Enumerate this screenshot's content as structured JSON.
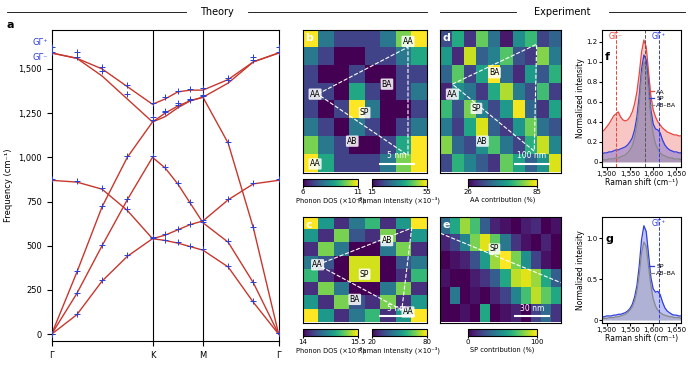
{
  "section_titles": [
    "Theory",
    "Experiment"
  ],
  "chart_data": [
    {
      "panel": "a",
      "type": "line",
      "ylabel": "Frequency (cm⁻¹)",
      "x": [
        0,
        0.25,
        0.5,
        0.75,
        1.0,
        1.125,
        1.25,
        1.375,
        1.5,
        1.75,
        2.0,
        2.25
      ],
      "xlim": [
        0,
        2.25
      ],
      "xticks": [
        {
          "value": 0,
          "label": "Γ"
        },
        {
          "value": 1.0,
          "label": "K"
        },
        {
          "value": 1.5,
          "label": "M"
        },
        {
          "value": 2.25,
          "label": "Γ"
        }
      ],
      "ylim": [
        -40,
        1720
      ],
      "yticks": [
        0,
        250,
        500,
        750,
        {
          "value": 1000,
          "label": "1,000"
        },
        {
          "value": 1250,
          "label": "1,250"
        },
        {
          "value": 1500,
          "label": "1,500"
        }
      ],
      "annotations": [
        {
          "text": "GΓ⁺",
          "y": 1625,
          "color": "#2b3fd1"
        },
        {
          "text": "GΓ⁻",
          "y": 1590,
          "color": "#2b3fd1"
        }
      ],
      "series": [
        {
          "type": "line",
          "color": "#c8372d",
          "values": [
            0,
            110,
            300,
            440,
            540,
            530,
            515,
            495,
            475,
            380,
            180,
            0
          ]
        },
        {
          "type": "line",
          "color": "#c8372d",
          "values": [
            0,
            230,
            500,
            760,
            1000,
            940,
            850,
            740,
            630,
            520,
            290,
            0
          ]
        },
        {
          "type": "line",
          "color": "#c8372d",
          "values": [
            0,
            350,
            720,
            1000,
            1200,
            1250,
            1290,
            1320,
            1340,
            1080,
            600,
            0
          ]
        },
        {
          "type": "line",
          "color": "#c8372d",
          "values": [
            870,
            860,
            820,
            700,
            540,
            560,
            590,
            620,
            640,
            760,
            850,
            870
          ]
        },
        {
          "type": "line",
          "color": "#c8372d",
          "values": [
            1590,
            1560,
            1460,
            1330,
            1200,
            1230,
            1280,
            1320,
            1340,
            1420,
            1540,
            1590
          ]
        },
        {
          "type": "line",
          "color": "#c8372d",
          "values": [
            1590,
            1560,
            1500,
            1400,
            1300,
            1330,
            1370,
            1380,
            1380,
            1440,
            1540,
            1590
          ]
        },
        {
          "type": "scatter",
          "marker": "+",
          "color": "#2b3fd1",
          "values": [
            0,
            115,
            305,
            445,
            545,
            535,
            520,
            500,
            480,
            385,
            185,
            5
          ]
        },
        {
          "type": "scatter",
          "marker": "+",
          "color": "#2b3fd1",
          "values": [
            0,
            235,
            505,
            765,
            1005,
            945,
            855,
            745,
            635,
            525,
            295,
            5
          ]
        },
        {
          "type": "scatter",
          "marker": "+",
          "color": "#2b3fd1",
          "values": [
            0,
            355,
            725,
            1005,
            1210,
            1255,
            1295,
            1325,
            1345,
            1085,
            605,
            5
          ]
        },
        {
          "type": "scatter",
          "marker": "+",
          "color": "#2b3fd1",
          "values": [
            880,
            865,
            825,
            705,
            550,
            565,
            595,
            625,
            645,
            765,
            855,
            880
          ]
        },
        {
          "type": "scatter",
          "marker": "+",
          "color": "#2b3fd1",
          "values": [
            1625,
            1595,
            1490,
            1360,
            1230,
            1260,
            1305,
            1330,
            1350,
            1440,
            1570,
            1625
          ]
        },
        {
          "type": "scatter",
          "marker": "+",
          "color": "#2b3fd1",
          "values": [
            1595,
            1570,
            1510,
            1410,
            1310,
            1340,
            1375,
            1385,
            1390,
            1450,
            1550,
            1595
          ]
        }
      ]
    },
    {
      "panel": "b",
      "type": "heatmap",
      "labels": [
        "AA",
        "AA",
        "BA",
        "SP",
        "AB",
        "AA"
      ],
      "scale_bar": "5 nm",
      "cells": [
        [
          11,
          8,
          7,
          7,
          7,
          8,
          10,
          11
        ],
        [
          8,
          7,
          6,
          6,
          7,
          7,
          8,
          9
        ],
        [
          7,
          6,
          6,
          7,
          6,
          6,
          7,
          7
        ],
        [
          7,
          7,
          6,
          9,
          7,
          6,
          7,
          8
        ],
        [
          7,
          6,
          7,
          11,
          8,
          6,
          6,
          7
        ],
        [
          8,
          7,
          6,
          8,
          7,
          6,
          7,
          8
        ],
        [
          10,
          8,
          7,
          6,
          6,
          7,
          9,
          11
        ],
        [
          11,
          9,
          7,
          7,
          7,
          8,
          10,
          11
        ]
      ],
      "colorbars": [
        {
          "label": "Phonon DOS (×10⁻³)",
          "range": [
            6,
            11
          ],
          "ticks": [
            6,
            11
          ]
        },
        {
          "label": "Raman intensity (×10⁻³)",
          "range": [
            15,
            55
          ],
          "ticks": [
            15,
            55
          ]
        }
      ]
    },
    {
      "panel": "c",
      "type": "heatmap",
      "labels": [
        "AB",
        "AA",
        "SP",
        "BA",
        "AA"
      ],
      "scale_bar": "5 nm",
      "cells": [
        [
          15.5,
          14.8,
          14.2,
          14.6,
          15.0,
          14.2,
          14.8,
          15.5
        ],
        [
          14.8,
          14.2,
          15.2,
          14.4,
          14.2,
          15.2,
          14.2,
          14.8
        ],
        [
          14.2,
          15.2,
          14.6,
          14.0,
          14.0,
          14.6,
          15.2,
          14.2
        ],
        [
          14.6,
          14.4,
          14.0,
          15.4,
          15.4,
          14.0,
          14.4,
          14.6
        ],
        [
          15.0,
          14.2,
          14.0,
          15.4,
          15.4,
          14.0,
          14.2,
          15.0
        ],
        [
          14.2,
          15.2,
          14.6,
          14.0,
          14.0,
          14.6,
          15.2,
          14.2
        ],
        [
          14.8,
          14.2,
          15.2,
          14.4,
          14.2,
          15.2,
          14.2,
          14.8
        ],
        [
          15.5,
          14.8,
          14.2,
          14.6,
          15.0,
          14.2,
          14.8,
          15.5
        ]
      ],
      "colorbars": [
        {
          "label": "Phonon DOS (×10⁻³)",
          "range": [
            14,
            15.5
          ],
          "ticks": [
            14,
            15.5
          ]
        },
        {
          "label": "Raman intensity (×10⁻³)",
          "range": [
            20,
            80
          ],
          "ticks": [
            20,
            80
          ]
        }
      ]
    },
    {
      "panel": "d",
      "type": "heatmap",
      "labels": [
        "AA",
        "BA",
        "SP",
        "AB"
      ],
      "scale_bar": "100 nm",
      "cells": [
        [
          40,
          62,
          35,
          71,
          48,
          30,
          55,
          66,
          38,
          45
        ],
        [
          58,
          33,
          80,
          44,
          52,
          69,
          41,
          36,
          74,
          50
        ],
        [
          45,
          70,
          38,
          60,
          85,
          47,
          33,
          58,
          42,
          64
        ],
        [
          32,
          55,
          49,
          36,
          62,
          78,
          51,
          40,
          67,
          37
        ],
        [
          66,
          41,
          73,
          52,
          39,
          58,
          84,
          46,
          35,
          60
        ],
        [
          50,
          37,
          61,
          82,
          44,
          36,
          57,
          72,
          48,
          41
        ],
        [
          74,
          46,
          39,
          55,
          68,
          49,
          38,
          63,
          80,
          53
        ],
        [
          39,
          64,
          52,
          43,
          35,
          71,
          60,
          44,
          56,
          82
        ]
      ],
      "colorbars": [
        {
          "label": "AA contribution (%)",
          "range": [
            26,
            85
          ],
          "ticks": [
            26,
            85
          ]
        }
      ]
    },
    {
      "panel": "e",
      "type": "heatmap",
      "labels": [
        "SP"
      ],
      "scale_bar": "30 nm",
      "cells": [
        [
          35,
          60,
          85,
          70,
          30,
          10,
          5,
          0,
          8,
          12,
          0,
          5
        ],
        [
          10,
          20,
          45,
          80,
          95,
          75,
          40,
          15,
          5,
          0,
          10,
          0
        ],
        [
          0,
          5,
          10,
          25,
          55,
          85,
          100,
          80,
          50,
          20,
          5,
          0
        ],
        [
          5,
          0,
          0,
          8,
          15,
          30,
          60,
          90,
          95,
          85,
          60,
          30
        ],
        [
          0,
          40,
          0,
          5,
          0,
          10,
          20,
          45,
          70,
          90,
          75,
          60
        ],
        [
          0,
          0,
          5,
          0,
          60,
          0,
          5,
          10,
          0,
          20,
          35,
          15
        ]
      ],
      "colorbars": [
        {
          "label": "SP contribution (%)",
          "range": [
            0,
            100
          ],
          "ticks": [
            0,
            100
          ]
        }
      ]
    },
    {
      "panel": "f",
      "type": "area",
      "xlabel": "Raman shift (cm⁻¹)",
      "ylabel": "Normalized intensity",
      "legend": "center right",
      "x": [
        1490,
        1495,
        1500,
        1505,
        1510,
        1515,
        1520,
        1525,
        1530,
        1535,
        1540,
        1545,
        1550,
        1555,
        1560,
        1565,
        1570,
        1575,
        1580,
        1585,
        1590,
        1595,
        1600,
        1605,
        1610,
        1615,
        1620,
        1625,
        1630,
        1635,
        1640,
        1645,
        1650,
        1655,
        1660
      ],
      "xlim": [
        1490,
        1660
      ],
      "xticks": [
        {
          "value": 1500,
          "label": "1,500"
        },
        {
          "value": 1550,
          "label": "1,550"
        },
        {
          "value": 1600,
          "label": "1,600"
        },
        {
          "value": 1650,
          "label": "1,650"
        }
      ],
      "ylim": [
        -0.05,
        1.32
      ],
      "yticks": [
        0,
        0.2,
        0.4,
        0.6,
        0.8,
        {
          "value": 1.0,
          "label": "1.0"
        },
        1.2
      ],
      "reference_lines": [
        {
          "label": "GΓ⁻",
          "x": 1520,
          "color": "#e8453c"
        },
        {
          "label": "GΓ⁺",
          "x": 1612,
          "color": "#2f3fe0"
        },
        {
          "x": 1582,
          "color": "#555555"
        }
      ],
      "series": [
        {
          "name": "AA",
          "color": "#e8453c",
          "values": [
            0.3,
            0.32,
            0.35,
            0.38,
            0.42,
            0.46,
            0.48,
            0.5,
            0.45,
            0.42,
            0.41,
            0.42,
            0.45,
            0.5,
            0.58,
            0.7,
            0.88,
            1.1,
            1.22,
            1.15,
            0.9,
            0.66,
            0.52,
            0.45,
            0.4,
            0.37,
            0.34,
            0.32,
            0.3,
            0.29,
            0.28,
            0.27,
            0.27,
            0.26,
            0.26
          ]
        },
        {
          "name": "SP",
          "color": "#2f3fe0",
          "values": [
            0.08,
            0.09,
            0.09,
            0.1,
            0.1,
            0.11,
            0.12,
            0.12,
            0.13,
            0.14,
            0.15,
            0.17,
            0.2,
            0.24,
            0.32,
            0.45,
            0.66,
            0.93,
            1.07,
            1.02,
            0.78,
            0.52,
            0.38,
            0.33,
            0.32,
            0.29,
            0.22,
            0.17,
            0.14,
            0.12,
            0.11,
            0.1,
            0.1,
            0.09,
            0.09
          ]
        },
        {
          "name": "AB–BA",
          "color": "#888888",
          "values": [
            0.02,
            0.02,
            0.02,
            0.03,
            0.03,
            0.03,
            0.04,
            0.04,
            0.05,
            0.06,
            0.07,
            0.09,
            0.12,
            0.16,
            0.24,
            0.37,
            0.58,
            0.86,
            1.0,
            0.95,
            0.7,
            0.45,
            0.28,
            0.18,
            0.13,
            0.09,
            0.07,
            0.06,
            0.05,
            0.04,
            0.04,
            0.03,
            0.03,
            0.03,
            0.02
          ]
        }
      ]
    },
    {
      "panel": "g",
      "type": "area",
      "xlabel": "Raman shift (cm⁻¹)",
      "ylabel": "Normalized intensity",
      "legend": "center right",
      "x": [
        1490,
        1495,
        1500,
        1505,
        1510,
        1515,
        1520,
        1525,
        1530,
        1535,
        1540,
        1545,
        1550,
        1555,
        1560,
        1565,
        1570,
        1575,
        1580,
        1585,
        1590,
        1595,
        1600,
        1605,
        1610,
        1615,
        1620,
        1625,
        1630,
        1635,
        1640,
        1645,
        1650,
        1655,
        1660
      ],
      "xlim": [
        1490,
        1660
      ],
      "xticks": [
        {
          "value": 1500,
          "label": "1,500"
        },
        {
          "value": 1550,
          "label": "1,550"
        },
        {
          "value": 1600,
          "label": "1,600"
        },
        {
          "value": 1650,
          "label": "1,650"
        }
      ],
      "ylim": [
        -0.03,
        1.25
      ],
      "yticks": [
        0,
        0.5,
        {
          "value": 1.0,
          "label": "1.0"
        }
      ],
      "reference_lines": [
        {
          "label": "GΓ⁺",
          "x": 1612,
          "color": "#2f3fe0"
        }
      ],
      "series": [
        {
          "name": "SP",
          "color": "#2f3fe0",
          "values": [
            0.04,
            0.04,
            0.05,
            0.05,
            0.05,
            0.06,
            0.06,
            0.07,
            0.07,
            0.08,
            0.09,
            0.11,
            0.14,
            0.19,
            0.28,
            0.42,
            0.66,
            0.98,
            1.15,
            1.08,
            0.8,
            0.52,
            0.38,
            0.34,
            0.35,
            0.31,
            0.22,
            0.15,
            0.11,
            0.09,
            0.07,
            0.06,
            0.06,
            0.05,
            0.05
          ]
        },
        {
          "name": "AB–BA",
          "color": "#888888",
          "values": [
            0.02,
            0.02,
            0.02,
            0.03,
            0.03,
            0.03,
            0.04,
            0.04,
            0.05,
            0.06,
            0.07,
            0.09,
            0.12,
            0.16,
            0.23,
            0.35,
            0.55,
            0.82,
            0.95,
            0.9,
            0.66,
            0.42,
            0.26,
            0.17,
            0.12,
            0.09,
            0.07,
            0.06,
            0.05,
            0.04,
            0.04,
            0.03,
            0.03,
            0.03,
            0.02
          ]
        }
      ]
    }
  ]
}
